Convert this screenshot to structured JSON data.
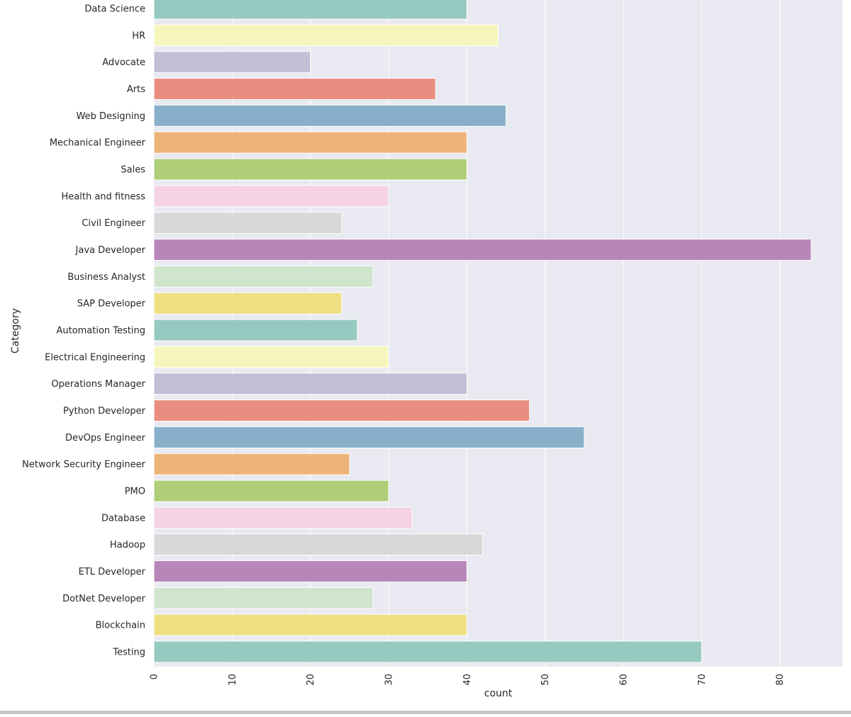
{
  "chart_data": {
    "type": "bar",
    "orientation": "horizontal",
    "xlabel": "count",
    "ylabel": "Category",
    "xlim": [
      0,
      88
    ],
    "xticks": [
      0,
      10,
      20,
      30,
      40,
      50,
      60,
      70,
      80
    ],
    "grid": true,
    "categories": [
      "Data Science",
      "HR",
      "Advocate",
      "Arts",
      "Web Designing",
      "Mechanical Engineer",
      "Sales",
      "Health and fitness",
      "Civil Engineer",
      "Java Developer",
      "Business Analyst",
      "SAP Developer",
      "Automation Testing",
      "Electrical Engineering",
      "Operations Manager",
      "Python Developer",
      "DevOps Engineer",
      "Network Security Engineer",
      "PMO",
      "Database",
      "Hadoop",
      "ETL Developer",
      "DotNet Developer",
      "Blockchain",
      "Testing"
    ],
    "values": [
      40,
      44,
      20,
      36,
      45,
      40,
      40,
      30,
      24,
      84,
      28,
      24,
      26,
      30,
      40,
      48,
      55,
      25,
      30,
      33,
      42,
      40,
      28,
      40,
      70
    ],
    "palette": [
      "#96cac1",
      "#f6f6bc",
      "#c3bed6",
      "#e98d80",
      "#89afca",
      "#edb378",
      "#aecf77",
      "#f5d2e4",
      "#d8d8d8",
      "#b887b9",
      "#cfe5cc",
      "#eedf81"
    ],
    "background": "#e9e9f1"
  }
}
